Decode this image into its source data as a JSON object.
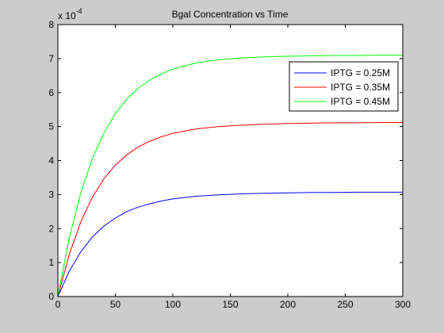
{
  "chart_data": {
    "type": "line",
    "title": "Bgal Concentration vs Time",
    "xlabel": "",
    "ylabel": "",
    "y_exponent_base": "x 10",
    "y_exponent_power": "-4",
    "xlim": [
      0,
      300
    ],
    "ylim": [
      0,
      8
    ],
    "xticks": [
      0,
      50,
      100,
      150,
      200,
      250,
      300
    ],
    "yticks": [
      0,
      1,
      2,
      3,
      4,
      5,
      6,
      7,
      8
    ],
    "grid": false,
    "legend_position": "top-right",
    "x": [
      0,
      10,
      20,
      30,
      40,
      50,
      60,
      70,
      80,
      90,
      100,
      120,
      140,
      160,
      180,
      200,
      220,
      240,
      260,
      280,
      300
    ],
    "series": [
      {
        "name": "IPTG = 0.25M",
        "color": "#0000ff",
        "values": [
          0,
          0.75,
          1.32,
          1.75,
          2.07,
          2.31,
          2.5,
          2.63,
          2.73,
          2.81,
          2.87,
          2.95,
          2.99,
          3.02,
          3.04,
          3.05,
          3.06,
          3.06,
          3.07,
          3.07,
          3.07
        ]
      },
      {
        "name": "IPTG = 0.35M",
        "color": "#ff0000",
        "values": [
          0,
          1.25,
          2.2,
          2.92,
          3.46,
          3.87,
          4.17,
          4.4,
          4.57,
          4.7,
          4.8,
          4.93,
          5.0,
          5.04,
          5.07,
          5.09,
          5.1,
          5.11,
          5.11,
          5.12,
          5.12
        ]
      },
      {
        "name": "IPTG = 0.45M",
        "color": "#00ff00",
        "values": [
          0,
          1.74,
          3.06,
          4.06,
          4.81,
          5.38,
          5.81,
          6.13,
          6.37,
          6.55,
          6.69,
          6.87,
          6.97,
          7.02,
          7.05,
          7.07,
          7.08,
          7.09,
          7.09,
          7.1,
          7.1
        ]
      }
    ]
  }
}
